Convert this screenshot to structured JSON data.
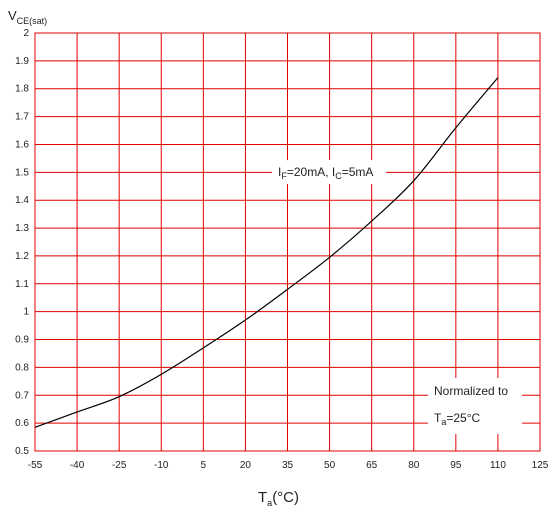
{
  "chart_data": {
    "type": "line",
    "ylabel": {
      "main": "V",
      "sub": "CE(sat)"
    },
    "xlabel": {
      "main": "T",
      "sub": "a",
      "suffix": "(°C)"
    },
    "xlim": [
      -55,
      125
    ],
    "ylim": [
      0.5,
      2.0
    ],
    "x_ticks": [
      -55,
      -40,
      -25,
      -10,
      5,
      20,
      35,
      50,
      65,
      80,
      95,
      110,
      125
    ],
    "x_tick_labels": [
      "-55",
      "-40",
      "-25",
      "-10",
      "5",
      "20",
      "35",
      "50",
      "65",
      "80",
      "95",
      "110",
      "125"
    ],
    "y_ticks": [
      0.5,
      0.6,
      0.7,
      0.8,
      0.9,
      1.0,
      1.1,
      1.2,
      1.3,
      1.4,
      1.5,
      1.6,
      1.7,
      1.8,
      1.9,
      2.0
    ],
    "y_tick_labels": [
      "0.5",
      "0.6",
      "0.7",
      "0.8",
      "0.9",
      "1",
      "1.1",
      "1.2",
      "1.3",
      "1.4",
      "1.5",
      "1.6",
      "1.7",
      "1.8",
      "1.9",
      "2"
    ],
    "grid": true,
    "grid_color": "#e00000",
    "line_color": "#000000",
    "series": [
      {
        "x": [
          -55,
          -40,
          -25,
          -10,
          5,
          20,
          35,
          50,
          65,
          80,
          95,
          110
        ],
        "y": [
          0.585,
          0.64,
          0.695,
          0.775,
          0.87,
          0.97,
          1.08,
          1.195,
          1.325,
          1.47,
          1.66,
          1.84
        ]
      }
    ],
    "annotations": {
      "condition": {
        "p1": "I",
        "s1": "F",
        "p2": "=20mA,  I",
        "s2": "C",
        "p3": "=5mA"
      },
      "normalized_line1": "Normalized to",
      "normalized_line2": {
        "main": "T",
        "sub": "a",
        "suffix": "=25°C"
      }
    }
  }
}
